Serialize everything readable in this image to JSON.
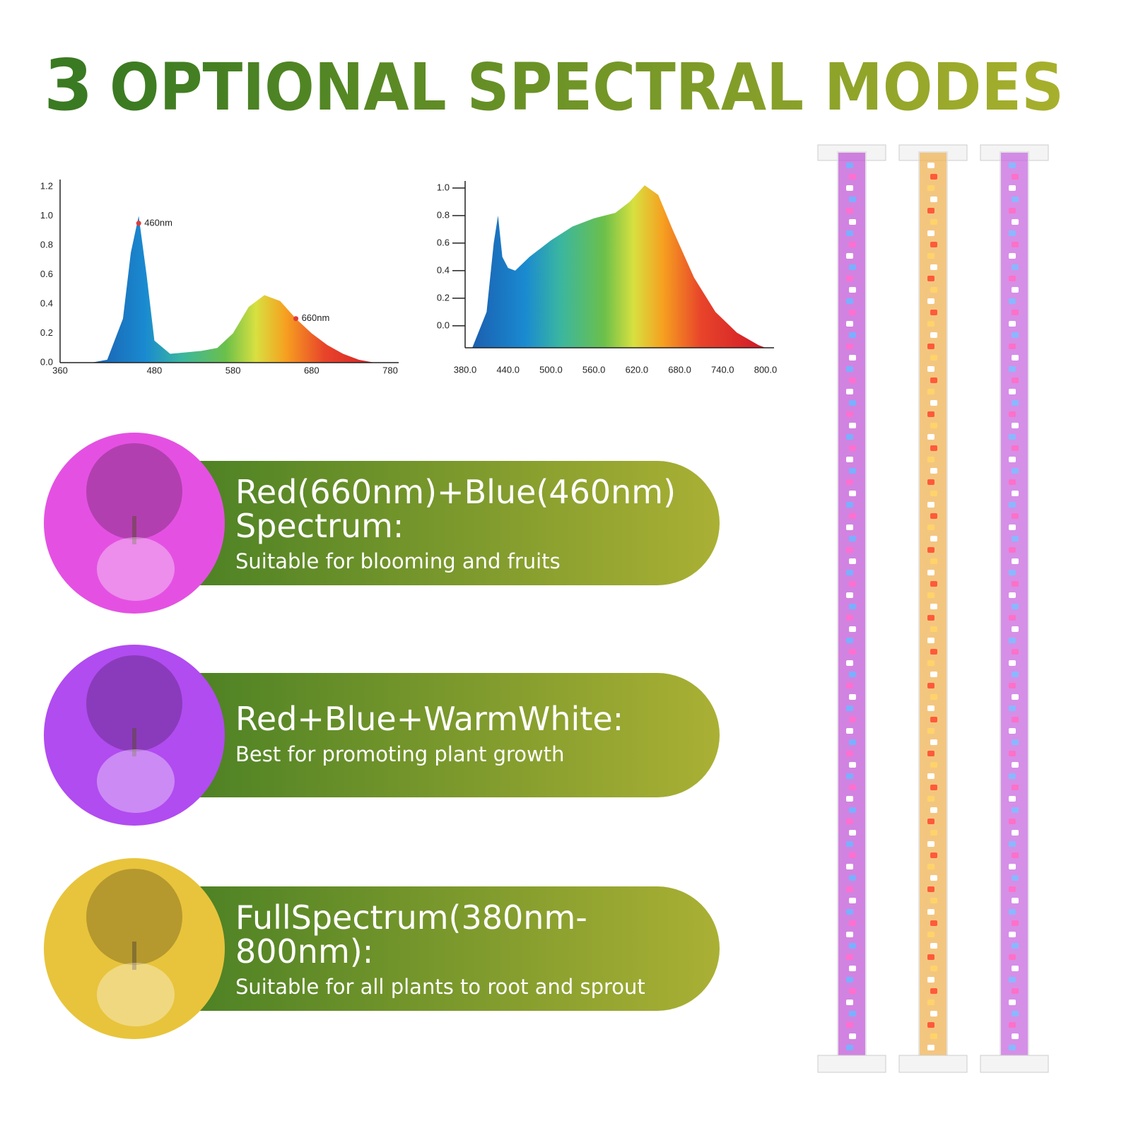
{
  "header": {
    "number": "3",
    "title": "OPTIONAL SPECTRAL MODES"
  },
  "chart_data": [
    {
      "type": "area",
      "x": [
        400,
        420,
        440,
        450,
        460,
        470,
        480,
        500,
        520,
        540,
        560,
        580,
        600,
        620,
        640,
        660,
        680,
        700,
        720,
        740,
        760,
        780
      ],
      "values": [
        0,
        0.02,
        0.3,
        0.75,
        1.0,
        0.6,
        0.15,
        0.06,
        0.07,
        0.08,
        0.1,
        0.2,
        0.38,
        0.46,
        0.42,
        0.3,
        0.2,
        0.12,
        0.06,
        0.02,
        0,
        0
      ],
      "xlim": [
        360,
        780
      ],
      "xticks": [
        360,
        480,
        580,
        680,
        780
      ],
      "ylim": [
        0,
        1.2
      ],
      "yticks": [
        {
          "value": 0,
          "label": "0.0"
        },
        0.2,
        0.4,
        0.6,
        0.8,
        {
          "value": 1,
          "label": "1.0"
        },
        1.2
      ],
      "annotations": [
        {
          "text": "460nm",
          "x": 460,
          "y": 0.95
        },
        {
          "text": "660nm",
          "x": 660,
          "y": 0.3
        }
      ],
      "tick_marks": false
    },
    {
      "type": "area",
      "x": [
        390,
        410,
        420,
        426,
        432,
        440,
        450,
        470,
        500,
        530,
        560,
        590,
        610,
        631,
        650,
        670,
        700,
        730,
        760,
        790,
        800
      ],
      "values": [
        -0.16,
        0.1,
        0.6,
        0.8,
        0.5,
        0.42,
        0.4,
        0.5,
        0.62,
        0.72,
        0.78,
        0.82,
        0.9,
        1.02,
        0.95,
        0.7,
        0.35,
        0.1,
        -0.05,
        -0.14,
        -0.16
      ],
      "xlim": [
        380,
        800
      ],
      "xticks": [
        {
          "value": 380,
          "label": "380.0"
        },
        {
          "value": 440,
          "label": "440.0"
        },
        {
          "value": 500,
          "label": "500.0"
        },
        {
          "value": 560,
          "label": "560.0"
        },
        {
          "value": 620,
          "label": "620.0"
        },
        {
          "value": 680,
          "label": "680.0"
        },
        {
          "value": 740,
          "label": "740.0"
        },
        {
          "value": 800,
          "label": "800.0"
        }
      ],
      "ylim": [
        -0.16,
        1.0
      ],
      "yticks": [
        {
          "value": 0,
          "label": "0.0"
        },
        0.2,
        0.4,
        0.6,
        0.8,
        {
          "value": 1,
          "label": "1.0"
        }
      ],
      "annotations": [],
      "tick_marks": true
    }
  ],
  "modes": [
    {
      "title_lines": [
        "Red(660nm)+Blue(460nm)",
        "Spectrum:"
      ],
      "description": "Suitable for blooming and fruits",
      "color": "#e451e2"
    },
    {
      "title_lines": [
        "Red+Blue+WarmWhite:"
      ],
      "description": "Best for promoting plant growth",
      "color": "#b14cf0"
    },
    {
      "title_lines": [
        "FullSpectrum(380nm-",
        "800nm):"
      ],
      "description": "Suitable for all plants to root and sprout",
      "color": "#e8c43c"
    }
  ]
}
